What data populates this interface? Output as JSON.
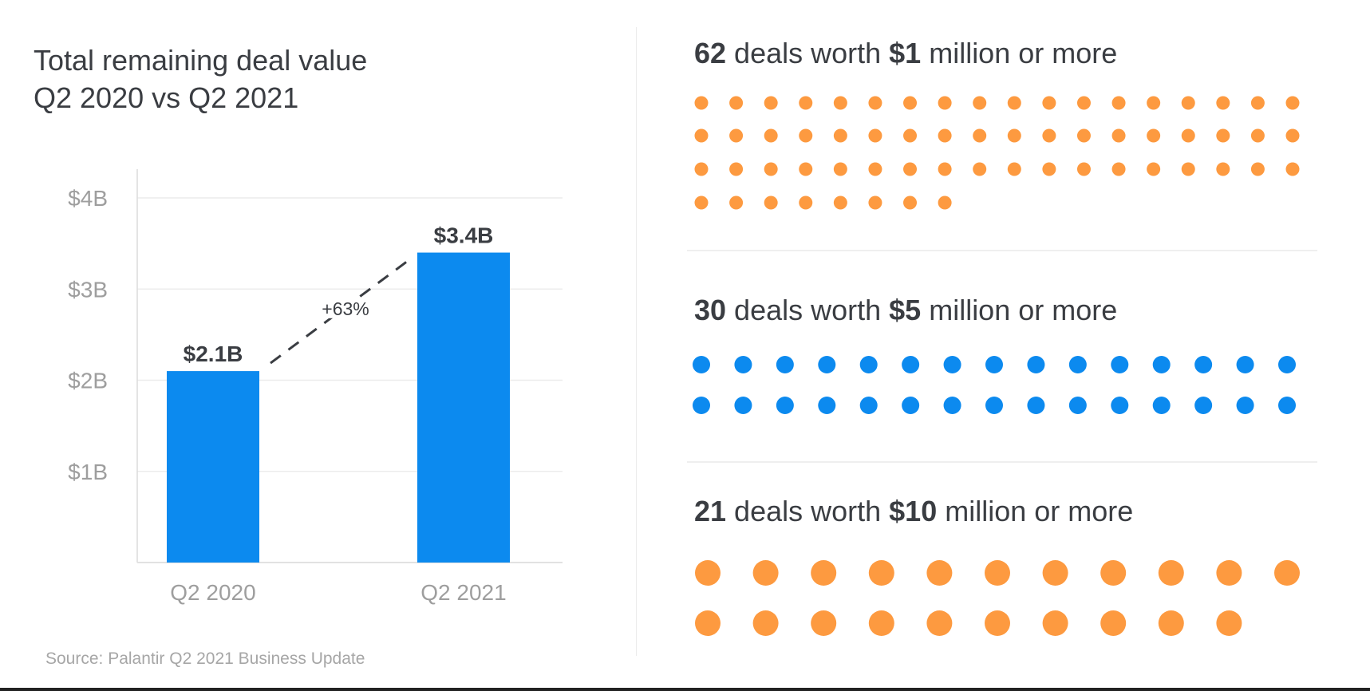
{
  "chart_data": [
    {
      "type": "bar",
      "title": "Total remaining deal value",
      "subtitle": "Q2 2020 vs Q2 2021",
      "categories": [
        "Q2 2020",
        "Q2 2021"
      ],
      "values": [
        2.1,
        3.4
      ],
      "value_labels": [
        "$2.1B",
        "$3.4B"
      ],
      "xlabel": "",
      "ylabel": "",
      "ylim": [
        0,
        4.3
      ],
      "yticks": [
        1,
        2,
        3,
        4
      ],
      "ytick_labels": [
        "$1B",
        "$2B",
        "$3B",
        "$4B"
      ],
      "grid": true,
      "bar_color": "#0c8aef",
      "annotation": {
        "text": "+63%",
        "type": "dashed-connector",
        "from": "Q2 2020",
        "to": "Q2 2021"
      },
      "source": "Source: Palantir Q2 2021 Business Update"
    },
    {
      "type": "table",
      "title": "Deal counts by size (unit dot chart)",
      "groups": [
        {
          "count": 62,
          "count_label": "62",
          "prefix": " deals worth ",
          "threshold": "$1",
          "suffix": " million or more",
          "color": "#fd9a40",
          "per_row": 18,
          "dot_size": "small"
        },
        {
          "count": 30,
          "count_label": "30",
          "prefix": " deals worth ",
          "threshold": "$5",
          "suffix": " million or more",
          "color": "#0c8aef",
          "per_row": 15,
          "dot_size": "medium"
        },
        {
          "count": 21,
          "count_label": "21",
          "prefix": " deals worth ",
          "threshold": "$10",
          "suffix": " million or more",
          "color": "#fd9a40",
          "per_row": 11,
          "dot_size": "large"
        }
      ]
    }
  ],
  "header": {
    "title_line1": "Total remaining deal value",
    "title_line2": "Q2 2020 vs Q2 2021"
  },
  "footer": {
    "source": "Source: Palantir Q2 2021 Business Update"
  }
}
